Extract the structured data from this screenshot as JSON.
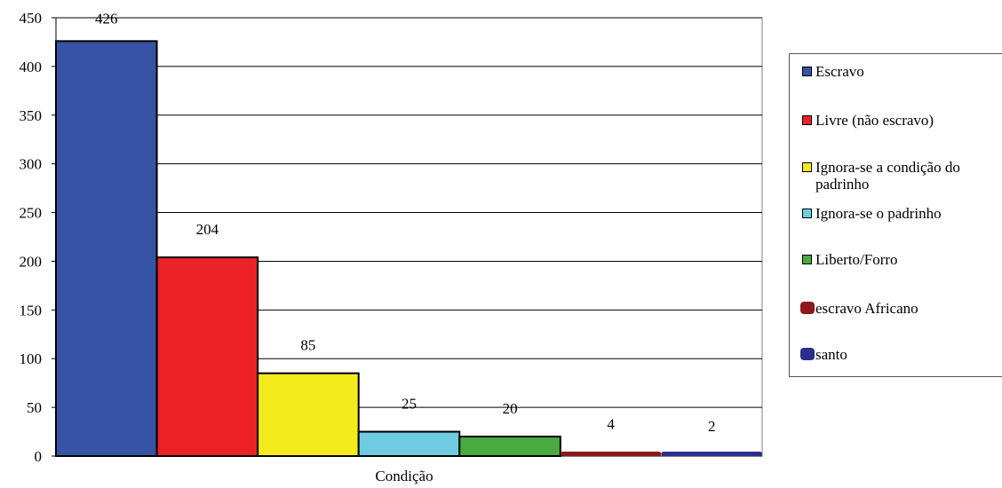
{
  "chart_data": {
    "type": "bar",
    "xlabel": "Condição",
    "ylim": [
      0,
      450
    ],
    "yticks": [
      0,
      50,
      100,
      150,
      200,
      250,
      300,
      350,
      400,
      450
    ],
    "grid": true,
    "legend_position": "right",
    "categories": [
      "Escravo",
      "Livre (não escravo)",
      "Ignora-se a condição do padrinho",
      "Ignora-se o padrinho",
      "Liberto/Forro",
      "escravo Africano",
      "santo"
    ],
    "values": [
      426,
      204,
      85,
      25,
      20,
      4,
      2
    ],
    "colors": [
      "#3653a5",
      "#ec2227",
      "#f3eb1b",
      "#6fcce0",
      "#4aaa42",
      "#8b1a1a",
      "#2b2e8c"
    ]
  },
  "legend": [
    {
      "label": "Escravo",
      "color": "#3653a5"
    },
    {
      "label": "Livre (não escravo)",
      "color": "#ec2227"
    },
    {
      "label": "Ignora-se a condição do padrinho",
      "color": "#f3eb1b"
    },
    {
      "label": "Ignora-se o padrinho",
      "color": "#6fcce0"
    },
    {
      "label": "Liberto/Forro",
      "color": "#4aaa42"
    },
    {
      "label": "escravo Africano",
      "color": "#8b1a1a"
    },
    {
      "label": "santo",
      "color": "#2b2e8c"
    }
  ]
}
